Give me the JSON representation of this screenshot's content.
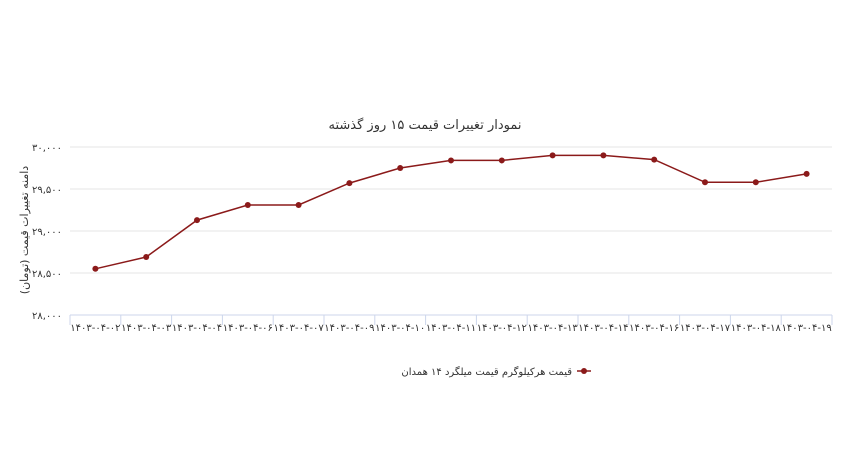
{
  "chart_data": {
    "type": "line",
    "title": "نمودار تغییرات قیمت ۱۵ روز گذشته",
    "ylabel": "دامنه تغییرات قیمت (تومان)",
    "xlabel": "",
    "ylim": [
      28000,
      30000
    ],
    "yticks": [
      {
        "value": 30000,
        "label": "۳۰,۰۰۰"
      },
      {
        "value": 29500,
        "label": "۲۹,۵۰۰"
      },
      {
        "value": 29000,
        "label": "۲۹,۰۰۰"
      },
      {
        "value": 28500,
        "label": "۲۸,۵۰۰"
      },
      {
        "value": 28000,
        "label": "۲۸,۰۰۰"
      }
    ],
    "categories": [
      "۱۴۰۳-۰۴-۰۲",
      "۱۴۰۳-۰۴-۰۳",
      "۱۴۰۳-۰۴-۰۴",
      "۱۴۰۳-۰۴-۰۶",
      "۱۴۰۳-۰۴-۰۷",
      "۱۴۰۳-۰۴-۰۹",
      "۱۴۰۳-۰۴-۱۰",
      "۱۴۰۳-۰۴-۱۱",
      "۱۴۰۳-۰۴-۱۲",
      "۱۴۰۳-۰۴-۱۳",
      "۱۴۰۳-۰۴-۱۴",
      "۱۴۰۳-۰۴-۱۶",
      "۱۴۰۳-۰۴-۱۷",
      "۱۴۰۳-۰۴-۱۸",
      "۱۴۰۳-۰۴-۱۹"
    ],
    "series": [
      {
        "name": "قیمت هرکیلوگرم قیمت میلگرد ۱۴ همدان",
        "color": "#8b1a1a",
        "values": [
          28550,
          28690,
          29130,
          29310,
          29310,
          29570,
          29750,
          29840,
          29840,
          29900,
          29900,
          29850,
          29580,
          29580,
          29680
        ]
      }
    ],
    "grid": true,
    "legend_position": "bottom"
  }
}
